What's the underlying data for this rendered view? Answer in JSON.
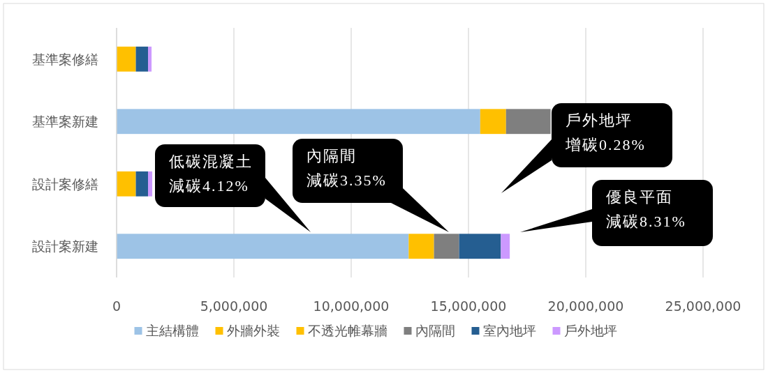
{
  "chart_data": {
    "type": "bar",
    "orientation": "horizontal",
    "stacked": true,
    "categories": [
      "基準案修繕",
      "基準案新建",
      "設計案修繕",
      "設計案新建"
    ],
    "series": [
      {
        "name": "主結構體",
        "color": "#9dc3e6",
        "values": [
          0,
          15500000,
          0,
          12450000
        ]
      },
      {
        "name": "外牆外裝",
        "color": "#ffc000",
        "values": [
          820000,
          1100000,
          820000,
          1080000
        ]
      },
      {
        "name": "不透光帷幕牆",
        "color": "#ffc000",
        "values": [
          0,
          0,
          0,
          0
        ]
      },
      {
        "name": "內隔間",
        "color": "#7f7f7f",
        "values": [
          0,
          1900000,
          0,
          1070000
        ]
      },
      {
        "name": "室內地坪",
        "color": "#255e91",
        "values": [
          520000,
          null,
          520000,
          1780000
        ]
      },
      {
        "name": "戶外地坪",
        "color": "#cc99ff",
        "values": [
          150000,
          null,
          180000,
          380000
        ]
      }
    ],
    "xlim": [
      0,
      25000000
    ],
    "xticks": [
      {
        "value": 0,
        "label": "0"
      },
      {
        "value": 5000000,
        "label": "5,000,000"
      },
      {
        "value": 10000000,
        "label": "10,000,000"
      },
      {
        "value": 15000000,
        "label": "15,000,000"
      },
      {
        "value": 20000000,
        "label": "20,000,000"
      },
      {
        "value": 25000000,
        "label": "25,000,000"
      }
    ],
    "grid": "x",
    "legend": "bottom",
    "annotations": [
      "低碳混凝土減碳4.12%",
      "內隔間減碳3.35%",
      "戶外地坪增碳0.28%",
      "優良平面減碳8.31%"
    ]
  }
}
